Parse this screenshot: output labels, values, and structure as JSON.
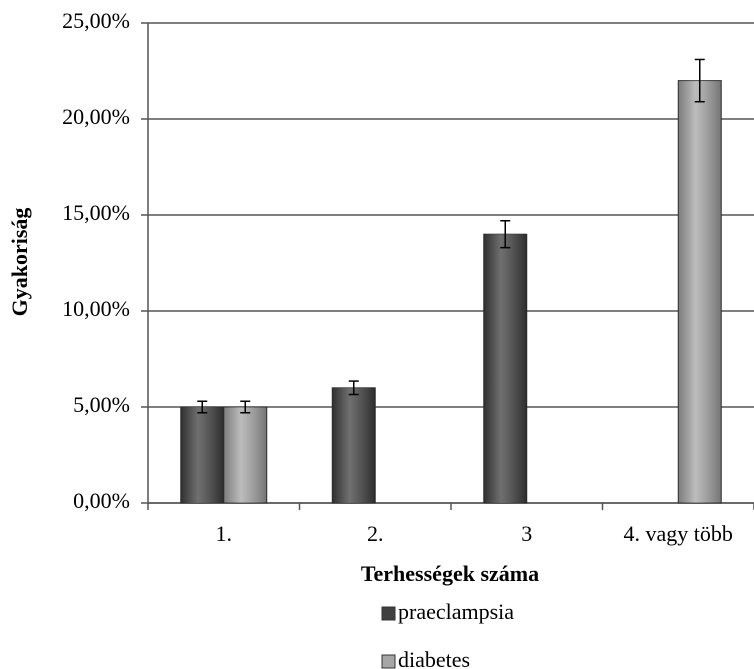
{
  "chart_data": {
    "type": "bar",
    "x_label": "Terhességek száma",
    "y_label": "Gyakoriság",
    "categories": [
      "1.",
      "2.",
      "3",
      "4. vagy több"
    ],
    "series": [
      {
        "name": "praeclampsia",
        "color": "#404040",
        "values": [
          5,
          6,
          14,
          null
        ],
        "errors": [
          0.3,
          0.35,
          0.7,
          null
        ]
      },
      {
        "name": "diabetes",
        "color": "#a6a6a6",
        "values": [
          5,
          null,
          null,
          22
        ],
        "errors": [
          0.3,
          null,
          null,
          1.1
        ]
      }
    ],
    "ylim": [
      0,
      25
    ],
    "yticks": [
      {
        "value": 0,
        "label": "0,00%"
      },
      {
        "value": 5,
        "label": "5,00%"
      },
      {
        "value": 10,
        "label": "10,00%"
      },
      {
        "value": 15,
        "label": "15,00%"
      },
      {
        "value": 20,
        "label": "20,00%"
      },
      {
        "value": 25,
        "label": "25,00%"
      }
    ],
    "grid": true,
    "legend": "bottom"
  }
}
